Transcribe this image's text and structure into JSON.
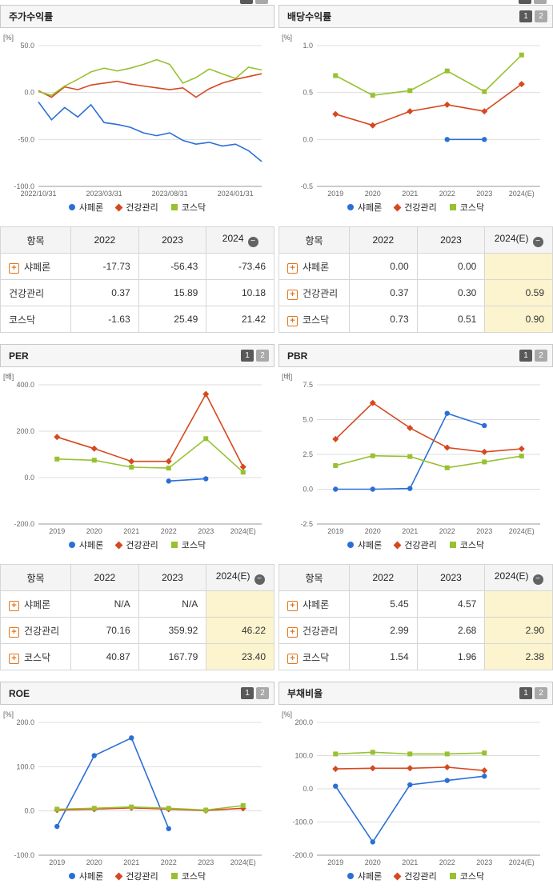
{
  "top_strip": {
    "pager": [
      "1",
      "2"
    ]
  },
  "colors": {
    "shaperon": "#2b6fd6",
    "healthcare": "#d6481f",
    "kosdaq": "#98c131",
    "highlight": "#fbf4cf"
  },
  "legend_series": [
    {
      "name": "샤페론",
      "color": "#2b6fd6",
      "marker": "circle"
    },
    {
      "name": "건강관리",
      "color": "#d6481f",
      "marker": "diamond"
    },
    {
      "name": "코스닥",
      "color": "#98c131",
      "marker": "square"
    }
  ],
  "panels": [
    {
      "title": "주가수익률",
      "unit": "[%]",
      "pager": null
    },
    {
      "title": "배당수익률",
      "unit": "[%]",
      "pager": [
        "1",
        "2"
      ]
    },
    {
      "title": "PER",
      "unit": "[배]",
      "pager": [
        "1",
        "2"
      ]
    },
    {
      "title": "PBR",
      "unit": "[배]",
      "pager": [
        "1",
        "2"
      ]
    },
    {
      "title": "ROE",
      "unit": "[%]",
      "pager": [
        "1",
        "2"
      ]
    },
    {
      "title": "부채비율",
      "unit": "[%]",
      "pager": [
        "1",
        "2"
      ]
    }
  ],
  "chart_data": [
    {
      "type": "line",
      "title": "주가수익률",
      "unit": "[%]",
      "ylim": [
        -100,
        50
      ],
      "yticks": [
        50,
        0,
        -50,
        -100
      ],
      "span": "full",
      "markers": false,
      "categories": [
        "2022/10/31",
        "",
        "",
        "",
        "",
        "2023/03/31",
        "",
        "",
        "",
        "",
        "2023/08/31",
        "",
        "",
        "",
        "",
        "2024/01/31",
        "",
        ""
      ],
      "series": [
        {
          "name": "샤페론",
          "color": "#2b6fd6",
          "marker": "circle",
          "values": [
            -10,
            -29,
            -16,
            -26,
            -13,
            -32,
            -34,
            -37,
            -43,
            -46,
            -43,
            -51,
            -55,
            -53,
            -57,
            -55,
            -62,
            -73.46
          ]
        },
        {
          "name": "건강관리",
          "color": "#d6481f",
          "marker": "diamond",
          "values": [
            2,
            -5,
            6,
            3,
            8,
            10,
            12,
            9,
            7,
            5,
            3,
            5,
            -5,
            4,
            10,
            14,
            17,
            20
          ]
        },
        {
          "name": "코스닥",
          "color": "#98c131",
          "marker": "square",
          "values": [
            1,
            -3,
            7,
            14,
            22,
            26,
            23,
            26,
            30,
            35,
            30,
            10,
            16,
            25,
            20,
            15,
            27,
            24
          ]
        }
      ]
    },
    {
      "type": "line",
      "title": "배당수익률",
      "unit": "[%]",
      "ylim": [
        -0.5,
        1.0
      ],
      "yticks": [
        1.0,
        0.5,
        0.0,
        -0.5
      ],
      "markers": true,
      "categories": [
        "2019",
        "2020",
        "2021",
        "2022",
        "2023",
        "2024(E)"
      ],
      "series": [
        {
          "name": "샤페론",
          "color": "#2b6fd6",
          "marker": "circle",
          "values": [
            null,
            null,
            null,
            0.0,
            0.0,
            null
          ]
        },
        {
          "name": "건강관리",
          "color": "#d6481f",
          "marker": "diamond",
          "values": [
            0.27,
            0.15,
            0.3,
            0.37,
            0.3,
            0.59
          ]
        },
        {
          "name": "코스닥",
          "color": "#98c131",
          "marker": "square",
          "values": [
            0.68,
            0.47,
            0.52,
            0.73,
            0.51,
            0.9
          ]
        }
      ]
    },
    {
      "type": "line",
      "title": "PER",
      "unit": "[배]",
      "ylim": [
        -200,
        400
      ],
      "yticks": [
        400,
        200,
        0,
        -200
      ],
      "markers": true,
      "categories": [
        "2019",
        "2020",
        "2021",
        "2022",
        "2023",
        "2024(E)"
      ],
      "series": [
        {
          "name": "샤페론",
          "color": "#2b6fd6",
          "marker": "circle",
          "values": [
            null,
            null,
            null,
            -15,
            -5,
            null
          ]
        },
        {
          "name": "건강관리",
          "color": "#d6481f",
          "marker": "diamond",
          "values": [
            175,
            125,
            70,
            70.16,
            359.92,
            46.22
          ]
        },
        {
          "name": "코스닥",
          "color": "#98c131",
          "marker": "square",
          "values": [
            80,
            75,
            45,
            40.87,
            167.79,
            23.4
          ]
        }
      ]
    },
    {
      "type": "line",
      "title": "PBR",
      "unit": "[배]",
      "ylim": [
        -2.5,
        7.5
      ],
      "yticks": [
        7.5,
        5.0,
        2.5,
        0.0,
        -2.5
      ],
      "markers": true,
      "categories": [
        "2019",
        "2020",
        "2021",
        "2022",
        "2023",
        "2024(E)"
      ],
      "series": [
        {
          "name": "샤페론",
          "color": "#2b6fd6",
          "marker": "circle",
          "values": [
            0.0,
            0.0,
            0.05,
            5.45,
            4.57,
            null
          ]
        },
        {
          "name": "건강관리",
          "color": "#d6481f",
          "marker": "diamond",
          "values": [
            3.6,
            6.2,
            4.4,
            2.99,
            2.68,
            2.9
          ]
        },
        {
          "name": "코스닥",
          "color": "#98c131",
          "marker": "square",
          "values": [
            1.7,
            2.4,
            2.35,
            1.54,
            1.96,
            2.38
          ]
        }
      ]
    },
    {
      "type": "line",
      "title": "ROE",
      "unit": "[%]",
      "ylim": [
        -100,
        200
      ],
      "yticks": [
        200,
        100,
        0,
        -100
      ],
      "markers": true,
      "categories": [
        "2019",
        "2020",
        "2021",
        "2022",
        "2023",
        "2024(E)"
      ],
      "series": [
        {
          "name": "샤페론",
          "color": "#2b6fd6",
          "marker": "circle",
          "values": [
            -35,
            125,
            165,
            -40,
            null,
            null
          ]
        },
        {
          "name": "건강관리",
          "color": "#d6481f",
          "marker": "diamond",
          "values": [
            2,
            4,
            7,
            4,
            1,
            6
          ]
        },
        {
          "name": "코스닥",
          "color": "#98c131",
          "marker": "square",
          "values": [
            4,
            6,
            9,
            6,
            2,
            12
          ]
        }
      ]
    },
    {
      "type": "line",
      "title": "부채비율",
      "unit": "[%]",
      "ylim": [
        -200,
        200
      ],
      "yticks": [
        200,
        100,
        0,
        -100,
        -200
      ],
      "markers": true,
      "categories": [
        "2019",
        "2020",
        "2021",
        "2022",
        "2023",
        "2024(E)"
      ],
      "series": [
        {
          "name": "샤페론",
          "color": "#2b6fd6",
          "marker": "circle",
          "values": [
            8,
            -160,
            12,
            25,
            38,
            null
          ]
        },
        {
          "name": "건강관리",
          "color": "#d6481f",
          "marker": "diamond",
          "values": [
            60,
            62,
            62,
            65,
            55,
            null
          ]
        },
        {
          "name": "코스닥",
          "color": "#98c131",
          "marker": "square",
          "values": [
            105,
            110,
            105,
            105,
            108,
            null
          ]
        }
      ]
    }
  ],
  "tables": [
    {
      "metric": "주가수익률",
      "headers": [
        "항목",
        "2022",
        "2023",
        "2024"
      ],
      "collapse_badge": "−",
      "highlight_last": false,
      "rows": [
        {
          "label": "샤페론",
          "expand": true,
          "values": [
            "-17.73",
            "-56.43",
            "-73.46"
          ]
        },
        {
          "label": "건강관리",
          "expand": false,
          "values": [
            "0.37",
            "15.89",
            "10.18"
          ]
        },
        {
          "label": "코스닥",
          "expand": false,
          "values": [
            "-1.63",
            "25.49",
            "21.42"
          ]
        }
      ]
    },
    {
      "metric": "배당수익률",
      "headers": [
        "항목",
        "2022",
        "2023",
        "2024(E)"
      ],
      "collapse_badge": "−",
      "highlight_last": true,
      "rows": [
        {
          "label": "샤페론",
          "expand": true,
          "values": [
            "0.00",
            "0.00",
            ""
          ]
        },
        {
          "label": "건강관리",
          "expand": true,
          "values": [
            "0.37",
            "0.30",
            "0.59"
          ]
        },
        {
          "label": "코스닥",
          "expand": true,
          "values": [
            "0.73",
            "0.51",
            "0.90"
          ]
        }
      ]
    },
    {
      "metric": "PER",
      "headers": [
        "항목",
        "2022",
        "2023",
        "2024(E)"
      ],
      "collapse_badge": "−",
      "highlight_last": true,
      "rows": [
        {
          "label": "샤페론",
          "expand": true,
          "values": [
            "N/A",
            "N/A",
            ""
          ]
        },
        {
          "label": "건강관리",
          "expand": true,
          "values": [
            "70.16",
            "359.92",
            "46.22"
          ]
        },
        {
          "label": "코스닥",
          "expand": true,
          "values": [
            "40.87",
            "167.79",
            "23.40"
          ]
        }
      ]
    },
    {
      "metric": "PBR",
      "headers": [
        "항목",
        "2022",
        "2023",
        "2024(E)"
      ],
      "collapse_badge": "−",
      "highlight_last": true,
      "rows": [
        {
          "label": "샤페론",
          "expand": true,
          "values": [
            "5.45",
            "4.57",
            ""
          ]
        },
        {
          "label": "건강관리",
          "expand": true,
          "values": [
            "2.99",
            "2.68",
            "2.90"
          ]
        },
        {
          "label": "코스닥",
          "expand": true,
          "values": [
            "1.54",
            "1.96",
            "2.38"
          ]
        }
      ]
    }
  ]
}
